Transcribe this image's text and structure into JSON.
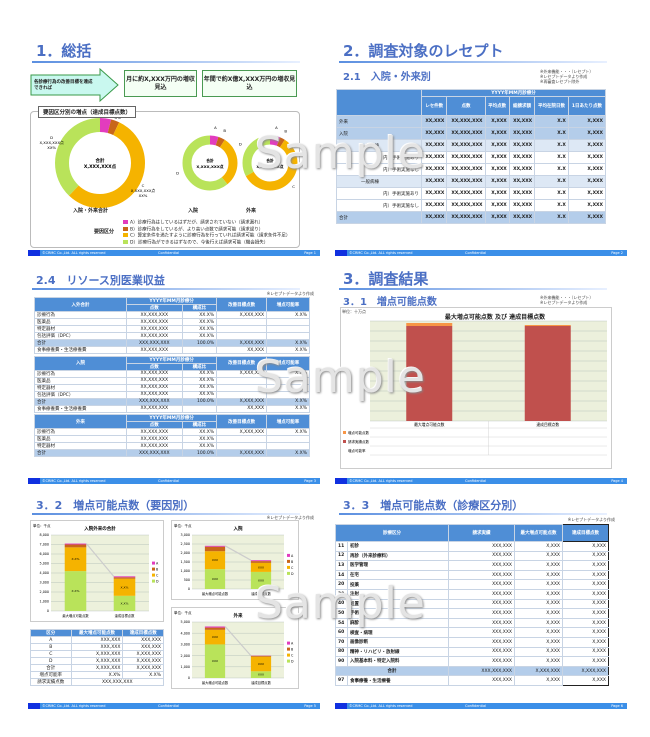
{
  "colors": {
    "A": "#e23cbe",
    "B": "#c8661a",
    "C": "#f5b300",
    "D": "#b9e35a",
    "red": "#c0504d",
    "orange": "#f79646",
    "header": "#4f8ed6"
  },
  "footer": {
    "copyright": "©CRMC Co.,Ltd. ALL rights reserved",
    "confidential": "Confidential"
  },
  "watermark": "Sample",
  "slides": [
    {
      "title": "1．総括",
      "page": "Page 1",
      "arrow_text": "各診療行為の改善目標を達成できれば",
      "box1": "月に約X,XXX万円の増収見込",
      "box2": "年間で約X億X,XXX万円の増収見込",
      "panel_title": "要因区分別の増点（達成目標点数）",
      "donuts": [
        {
          "label": "入院・外来合計",
          "center": "合計\nX,XXX,XXX点",
          "values": [
            4,
            3,
            55,
            38
          ],
          "slice_labels": [
            "A\nXXX,XXX点\nX%",
            "B\nXXX,XXX点\nX%",
            "C\nX,XXX,XXX点\nXX%",
            "D\nX,XXX,XXX点\nXX%"
          ]
        },
        {
          "label": "入院",
          "center": "合計\nX,XXX,XXX点",
          "values": [
            5,
            4,
            30,
            61
          ],
          "slice_labels": [
            "A",
            "B",
            "C",
            "D"
          ]
        },
        {
          "label": "外来",
          "center": "合計\nX,XXX,XXX点",
          "values": [
            6,
            3,
            58,
            33
          ],
          "slice_labels": [
            "A",
            "B",
            "C",
            "D"
          ]
        }
      ],
      "legend_title": "要因区分",
      "legend": [
        {
          "key": "A",
          "text": "A）診療行為はしているはずだが、請求されていない（請求漏れ）"
        },
        {
          "key": "B",
          "text": "B）診療行為をしているが、より高い点数で請求可能（請求誤り）"
        },
        {
          "key": "C",
          "text": "C）算定条件を満たすように診療行為を行っていれば請求可能（請求条件不足）"
        },
        {
          "key": "D",
          "text": "D）診療行為ができるはずなので、今後行えば請求可能（機会損失）"
        }
      ]
    },
    {
      "title": "2．調査対象のレセプト",
      "subtitle": "2.1　入院・外来別",
      "page": "Page 2",
      "notes": [
        "※外来機能・・・（レセプト）",
        "※レセプトデータより作成",
        "※再審査レセプト除外"
      ],
      "group_header": "YYYY年MM月診療分",
      "columns": [
        "レセ件数",
        "点数",
        "平均点数",
        "総請求額",
        "平均在院日数",
        "1日あたり点数"
      ],
      "rows": [
        {
          "label": "外来",
          "cls": "hl",
          "indent": 0,
          "values": [
            "XX,XXX",
            "XX,XXX,XXX",
            "X,XXX",
            "XX,XXX",
            "X.X",
            "X,XXX"
          ]
        },
        {
          "label": "入院",
          "cls": "hl",
          "indent": 0,
          "values": [
            "XX,XXX",
            "XX,XXX,XXX",
            "X,XXX",
            "XX,XXX",
            "X.X",
            "X,XXX"
          ]
        },
        {
          "label": "一般病棟",
          "cls": "lt",
          "indent": 1,
          "values": [
            "XX,XXX",
            "XX,XXX,XXX",
            "X,XXX",
            "XX,XXX",
            "X.X",
            "X,XXX"
          ]
        },
        {
          "label": "内）手術実施あり",
          "cls": "",
          "indent": 2,
          "values": [
            "XX,XXX",
            "XX,XXX,XXX",
            "X,XXX",
            "XX,XXX",
            "X.X",
            "X,XXX"
          ]
        },
        {
          "label": "内）手術実施なし",
          "cls": "",
          "indent": 2,
          "values": [
            "XX,XXX",
            "XX,XXX,XXX",
            "X,XXX",
            "XX,XXX",
            "X.X",
            "X,XXX"
          ]
        },
        {
          "label": "一般病棟",
          "cls": "lt",
          "indent": 1,
          "values": [
            "XX,XXX",
            "XX,XXX,XXX",
            "X,XXX",
            "XX,XXX",
            "X.X",
            "X,XXX"
          ]
        },
        {
          "label": "内）手術実施あり",
          "cls": "",
          "indent": 2,
          "values": [
            "XX,XXX",
            "XX,XXX,XXX",
            "X,XXX",
            "XX,XXX",
            "X.X",
            "X,XXX"
          ]
        },
        {
          "label": "内）手術実施なし",
          "cls": "",
          "indent": 2,
          "values": [
            "XX,XXX",
            "XX,XXX,XXX",
            "X,XXX",
            "XX,XXX",
            "X.X",
            "X,XXX"
          ]
        },
        {
          "label": "合計",
          "cls": "hl",
          "indent": 0,
          "values": [
            "XX,XXX",
            "XX,XXX,XXX",
            "X,XXX",
            "XX,XXX",
            "X.X",
            "X,XXX"
          ]
        }
      ]
    },
    {
      "title": "2.4　リソース別医業収益",
      "page": "Page 3",
      "note": "※レセプトデータより作成",
      "tables": [
        {
          "name": "入外合計",
          "group": "YYYY年MM月診療分",
          "sub": [
            "点数",
            "構成比"
          ],
          "cols": [
            "改善目標点数",
            "増点可能率"
          ],
          "rows": [
            [
              "診療行為",
              "XX,XXX,XXX",
              "XX.X%",
              "X,XXX,XXX",
              "X.X%",
              ""
            ],
            [
              "医薬品",
              "XX,XXX,XXX",
              "XX.X%",
              "",
              "",
              ""
            ],
            [
              "特定器材",
              "XX,XXX,XXX",
              "XX.X%",
              "",
              "",
              ""
            ],
            [
              "包括評価（DPC）",
              "XX,XXX,XXX",
              "XX.X%",
              "",
              "",
              ""
            ],
            [
              "合計",
              "XXX,XXX,XXX",
              "100.0%",
              "X,XXX,XXX",
              "X.X%",
              "hl"
            ],
            [
              "食事療養費・生活療養費",
              "XX,XXX,XXX",
              "",
              "XX,XXX",
              "X.X%",
              ""
            ]
          ]
        },
        {
          "name": "入院",
          "group": "YYYY年MM月診療分",
          "sub": [
            "点数",
            "構成比"
          ],
          "cols": [
            "改善目標点数",
            "増点可能率"
          ],
          "rows": [
            [
              "診療行為",
              "XX,XXX,XXX",
              "XX.X%",
              "X,XXX,XXX",
              "X.X%",
              ""
            ],
            [
              "医薬品",
              "XX,XXX,XXX",
              "XX.X%",
              "",
              "",
              ""
            ],
            [
              "特定器材",
              "XX,XXX,XXX",
              "XX.X%",
              "",
              "",
              ""
            ],
            [
              "包括評価（DPC）",
              "XX,XXX,XXX",
              "XX.X%",
              "",
              "",
              ""
            ],
            [
              "合計",
              "XXX,XXX,XXX",
              "100.0%",
              "X,XXX,XXX",
              "X.X%",
              "hl"
            ],
            [
              "食事療養費・生活療養費",
              "XX,XXX,XXX",
              "",
              "XX,XXX",
              "X.X%",
              ""
            ]
          ]
        },
        {
          "name": "外来",
          "group": "YYYY年MM月診療分",
          "sub": [
            "点数",
            "構成比"
          ],
          "cols": [
            "改善目標点数",
            "増点可能率"
          ],
          "rows": [
            [
              "診療行為",
              "XX,XXX,XXX",
              "XX.X%",
              "X,XXX,XXX",
              "X.X%",
              ""
            ],
            [
              "医薬品",
              "XX,XXX,XXX",
              "XX.X%",
              "",
              "",
              ""
            ],
            [
              "特定器材",
              "XX,XXX,XXX",
              "XX.X%",
              "",
              "",
              ""
            ],
            [
              "合計",
              "XXX,XXX,XXX",
              "100.0%",
              "X,XXX,XXX",
              "X.X%",
              "hl"
            ]
          ]
        }
      ]
    },
    {
      "title": "3．調査結果",
      "subtitle": "3．1　増点可能点数",
      "page": "Page 4",
      "notes": [
        "※外来機能・・・（レセプト）",
        "※レセプトデータより作成"
      ],
      "unit": "単位：十万点",
      "row_label": "増点可能率"
    },
    {
      "title": "3．2　増点可能点数（要因別）",
      "page": "Page 5",
      "note": "※レセプトデータより作成",
      "table": {
        "headers": [
          "区分",
          "最大増点可能点数",
          "達成目標点数"
        ],
        "rows": [
          [
            "A",
            "XXX,XXX",
            "XXX,XXX"
          ],
          [
            "B",
            "XXX,XXX",
            "XXX,XXX"
          ],
          [
            "C",
            "X,XXX,XXX",
            "X,XXX,XXX"
          ],
          [
            "D",
            "X,XXX,XXX",
            "X,XXX,XXX"
          ],
          [
            "合計",
            "X,XXX,XXX",
            "X,XXX,XXX"
          ],
          [
            "増点可能率",
            "X.X%",
            "X.X%"
          ]
        ],
        "total_label": "請求実績点数",
        "total_value": "XXX,XXX,XXX"
      }
    },
    {
      "title": "3．3　増点可能点数（診療区分別）",
      "page": "Page 6",
      "note": "※レセプトデータより作成",
      "headers": [
        "診療区分",
        "請求実績",
        "最大増点可能点数",
        "達成目標点数"
      ],
      "rows": [
        [
          "11",
          "初診",
          "XXX,XXX",
          "X,XXX",
          "X,XXX"
        ],
        [
          "12",
          "再診（外来診療料）",
          "XXX,XXX",
          "X,XXX",
          "X,XXX"
        ],
        [
          "13",
          "医学管理",
          "XXX,XXX",
          "X,XXX",
          "X,XXX"
        ],
        [
          "14",
          "在宅",
          "XXX,XXX",
          "X,XXX",
          "X,XXX"
        ],
        [
          "20",
          "投薬",
          "XXX,XXX",
          "X,XXX",
          "X,XXX"
        ],
        [
          "30",
          "注射",
          "XXX,XXX",
          "X,XXX",
          "X,XXX"
        ],
        [
          "40",
          "処置",
          "XXX,XXX",
          "X,XXX",
          "X,XXX"
        ],
        [
          "50",
          "手術",
          "XXX,XXX",
          "X,XXX",
          "X,XXX"
        ],
        [
          "54",
          "麻酔",
          "XXX,XXX",
          "X,XXX",
          "X,XXX"
        ],
        [
          "60",
          "検査・病理",
          "XXX,XXX",
          "X,XXX",
          "X,XXX"
        ],
        [
          "70",
          "画像診断",
          "XXX,XXX",
          "X,XXX",
          "X,XXX"
        ],
        [
          "80",
          "精神・リハビリ・放射線",
          "XXX,XXX",
          "X,XXX",
          "X,XXX"
        ],
        [
          "90",
          "入院基本料・特定入院料",
          "XXX,XXX",
          "X,XXX",
          "X,XXX"
        ]
      ],
      "total": [
        "合計",
        "XXX,XXX,XXX",
        "X,XXX,XXX",
        "X,XXX,XXX"
      ],
      "extra": [
        "97",
        "食事療養・生活療養",
        "XXX,XXX",
        "X,XXX",
        "X,XXX"
      ]
    }
  ],
  "chart_data": [
    {
      "type": "bar",
      "stacked": true,
      "title": "最大増点可能点数 及び 達成目標点数",
      "ylabel": "単位：十万点",
      "categories": [
        "最大増点可能点数",
        "達成目標点数"
      ],
      "series": [
        {
          "name": "請求実績点数",
          "values": [
            95,
            95
          ]
        },
        {
          "name": "増点可能点数",
          "values": [
            3,
            1
          ]
        }
      ],
      "ylim": [
        0,
        100
      ],
      "grid": true,
      "legend": "bottom-table"
    },
    {
      "type": "bar",
      "stacked": true,
      "title": "入院外来の合計",
      "ylabel": "単位：千点",
      "categories": [
        "最大増点可能点数",
        "達成目標点数"
      ],
      "ylim": [
        0,
        8000
      ],
      "ticks": [
        "0",
        "1,000",
        "2,000",
        "3,000",
        "4,000",
        "5,000",
        "6,000",
        "7,000",
        "8,000"
      ],
      "series": [
        {
          "name": "D",
          "values": [
            4200,
            1600
          ],
          "labels": [
            "X.X%",
            "X.X%"
          ]
        },
        {
          "name": "C",
          "values": [
            2500,
            1800
          ],
          "labels": [
            "X.X%",
            "X.X%"
          ]
        },
        {
          "name": "B",
          "values": [
            300,
            150
          ],
          "labels": [
            "X.X%",
            "X.X%"
          ]
        },
        {
          "name": "A",
          "values": [
            100,
            100
          ],
          "labels": [
            "X.X%",
            "X.X%"
          ]
        }
      ],
      "legend": "right"
    },
    {
      "type": "bar",
      "stacked": true,
      "title": "入院",
      "ylabel": "単位：千点",
      "categories": [
        "最大増点可能点数",
        "達成目標点数"
      ],
      "ylim": [
        0,
        3000
      ],
      "ticks": [
        "0",
        "500",
        "1,000",
        "1,500",
        "2,000",
        "2,500",
        "3,000"
      ],
      "series": [
        {
          "name": "D",
          "values": [
            1100,
            950
          ],
          "labels": [
            "XXX",
            "XXX"
          ]
        },
        {
          "name": "C",
          "values": [
            1000,
            500
          ],
          "labels": [
            "XXX",
            "XXX"
          ]
        },
        {
          "name": "B",
          "values": [
            250,
            100
          ],
          "labels": [
            "XXX",
            "XXX"
          ]
        },
        {
          "name": "A",
          "values": [
            50,
            50
          ],
          "labels": [
            "XXX",
            "XXX"
          ]
        }
      ],
      "legend": "right"
    },
    {
      "type": "bar",
      "stacked": true,
      "title": "外来",
      "ylabel": "単位：千点",
      "categories": [
        "最大増点可能点数",
        "達成目標点数"
      ],
      "ylim": [
        0,
        5000
      ],
      "ticks": [
        "0",
        "1,000",
        "2,000",
        "3,000",
        "4,000",
        "5,000"
      ],
      "series": [
        {
          "name": "D",
          "values": [
            3000,
            600
          ],
          "labels": [
            "XXX",
            "XXX"
          ]
        },
        {
          "name": "C",
          "values": [
            1300,
            1300
          ],
          "labels": [
            "XXX",
            "XXX"
          ]
        },
        {
          "name": "B",
          "values": [
            200,
            80
          ],
          "labels": [
            "XXX",
            "XXX"
          ]
        },
        {
          "name": "A",
          "values": [
            100,
            20
          ],
          "labels": [
            "XXX",
            "XXX"
          ]
        }
      ],
      "legend": "right"
    }
  ]
}
